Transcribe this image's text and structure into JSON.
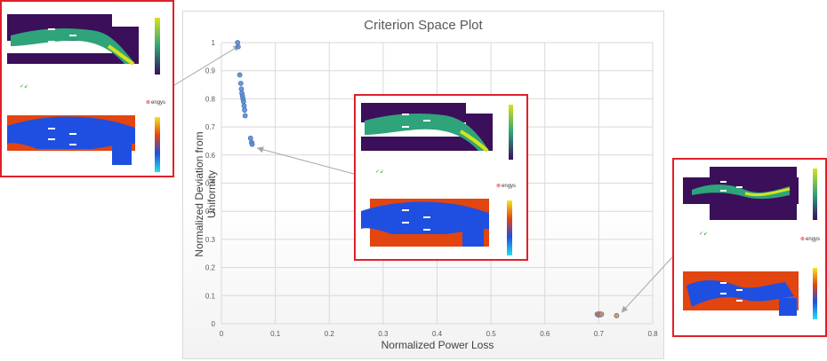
{
  "chart_data": {
    "type": "scatter",
    "title": "Criterion Space Plot",
    "xlabel": "Normalized Power Loss",
    "ylabel": "Normalized Deviation from Uniformity",
    "xlim": [
      0,
      0.8
    ],
    "ylim": [
      0,
      1
    ],
    "xticks": [
      "0",
      "0.1",
      "0.2",
      "0.3",
      "0.4",
      "0.5",
      "0.6",
      "0.7",
      "0.8"
    ],
    "yticks": [
      "0",
      "0.1",
      "0.2",
      "0.3",
      "0.4",
      "0.5",
      "0.6",
      "0.7",
      "0.8",
      "0.9",
      "1"
    ],
    "grid": true,
    "series": [
      {
        "color": "#5b8bd0",
        "points": [
          [
            0.03,
            1.0
          ],
          [
            0.031,
            0.985
          ],
          [
            0.034,
            0.885
          ],
          [
            0.036,
            0.855
          ],
          [
            0.037,
            0.835
          ],
          [
            0.038,
            0.82
          ],
          [
            0.039,
            0.81
          ],
          [
            0.04,
            0.8
          ],
          [
            0.041,
            0.79
          ],
          [
            0.042,
            0.775
          ],
          [
            0.043,
            0.76
          ],
          [
            0.044,
            0.74
          ],
          [
            0.054,
            0.66
          ],
          [
            0.056,
            0.645
          ],
          [
            0.057,
            0.638
          ]
        ]
      },
      {
        "color": "#e38a45",
        "points": [
          [
            0.697,
            0.034
          ],
          [
            0.699,
            0.031
          ],
          [
            0.701,
            0.036
          ],
          [
            0.703,
            0.032
          ],
          [
            0.705,
            0.034
          ],
          [
            0.733,
            0.029
          ]
        ]
      }
    ]
  },
  "insets": {
    "top_left": {
      "logo": "engys"
    },
    "center": {
      "logo": "engys"
    },
    "right": {
      "logo": "engys"
    }
  },
  "colors": {
    "frame": "#e0202a",
    "field_dark": "#3b0f5a",
    "field_green": "#2fa37a",
    "field_yellow": "#d8e21b",
    "solid_orange": "#e2450f",
    "solid_blue": "#1f4fe0"
  }
}
